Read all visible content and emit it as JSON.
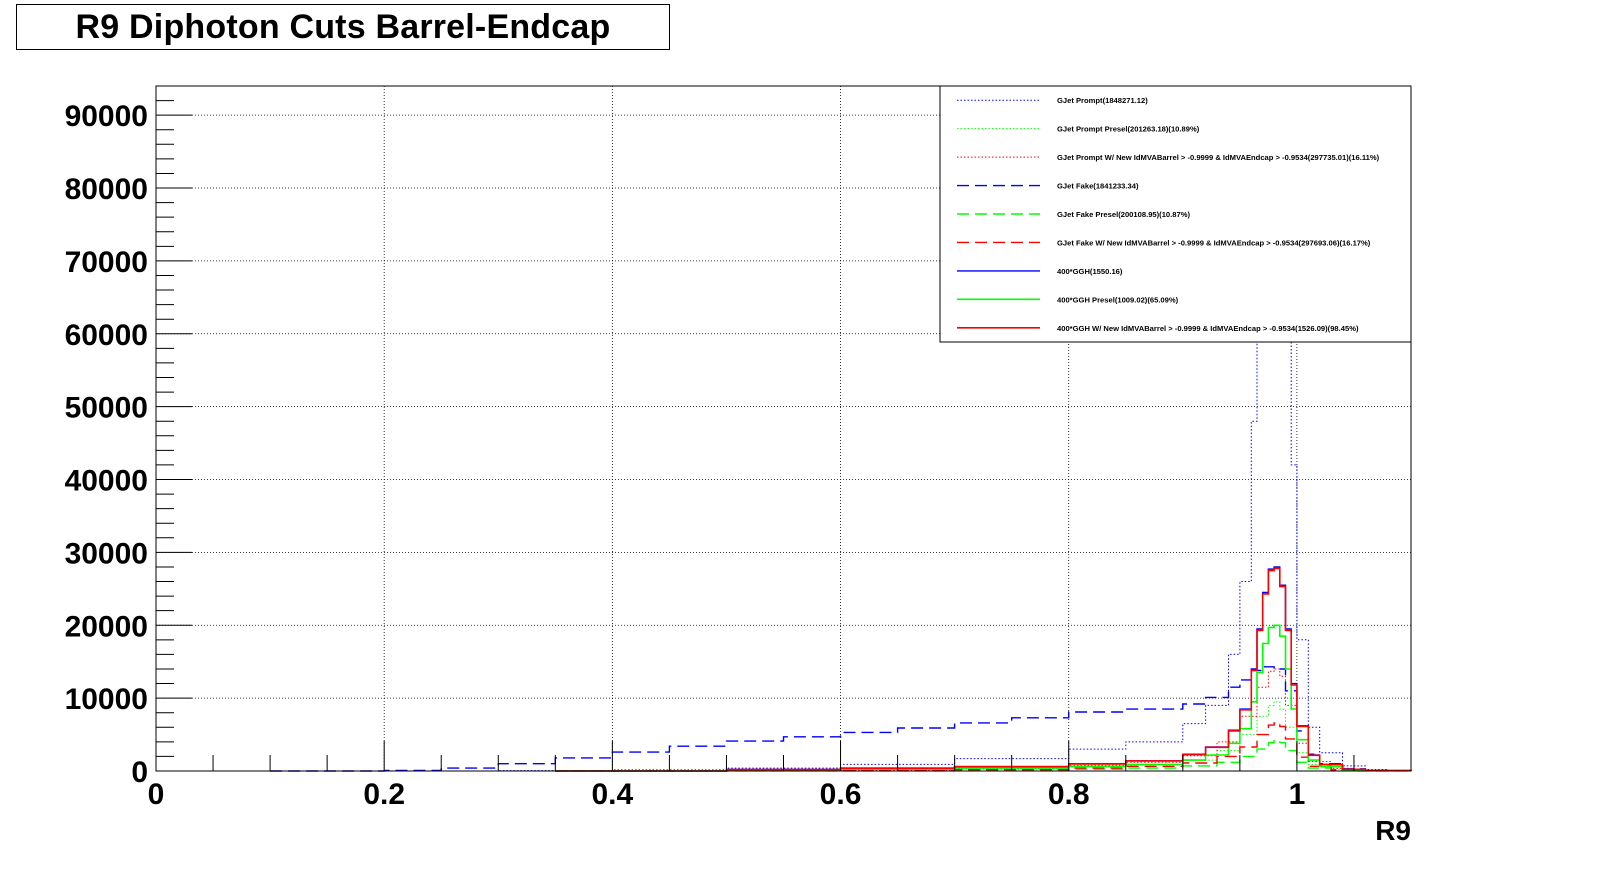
{
  "title": "R9 Diphoton Cuts Barrel-Endcap",
  "chart_data": {
    "type": "line",
    "title": "R9 Diphoton Cuts Barrel-Endcap",
    "xlabel": "R9",
    "ylabel": "",
    "xlim": [
      0,
      1.1
    ],
    "ylim": [
      0,
      94000
    ],
    "grid": true,
    "legend_position": "top-right",
    "x_ticks": [
      0,
      0.2,
      0.4,
      0.6,
      0.8,
      1
    ],
    "x_tick_labels": [
      "0",
      "0.2",
      "0.4",
      "0.6",
      "0.8",
      "1"
    ],
    "y_ticks": [
      0,
      10000,
      20000,
      30000,
      40000,
      50000,
      60000,
      70000,
      80000,
      90000
    ],
    "y_tick_labels": [
      "0",
      "10000",
      "20000",
      "30000",
      "40000",
      "50000",
      "60000",
      "70000",
      "80000",
      "90000"
    ],
    "series": [
      {
        "name": "GJet Prompt(1848271.12)",
        "color": "#0000ff",
        "style": "dotted",
        "width": 1,
        "x": [
          0.2,
          0.3,
          0.4,
          0.5,
          0.6,
          0.7,
          0.8,
          0.85,
          0.9,
          0.92,
          0.94,
          0.95,
          0.96,
          0.965,
          0.97,
          0.975,
          0.98,
          0.985,
          0.99,
          0.995,
          1.0,
          1.01,
          1.02,
          1.04,
          1.06,
          1.08,
          1.1
        ],
        "y": [
          0,
          50,
          150,
          400,
          900,
          1700,
          3000,
          4000,
          6500,
          9000,
          16000,
          26000,
          48000,
          70000,
          94000,
          94000,
          94000,
          94000,
          70000,
          42000,
          18000,
          6000,
          2500,
          700,
          200,
          50,
          0
        ]
      },
      {
        "name": "GJet Prompt Presel(201263.18)(10.89%)",
        "color": "#00ff00",
        "style": "dotted",
        "width": 1,
        "x": [
          0.3,
          0.5,
          0.7,
          0.8,
          0.85,
          0.9,
          0.93,
          0.95,
          0.965,
          0.975,
          0.98,
          0.985,
          0.99,
          1.0,
          1.01,
          1.03,
          1.05,
          1.1
        ],
        "y": [
          0,
          50,
          250,
          600,
          900,
          1500,
          2800,
          5000,
          7500,
          9000,
          9500,
          8500,
          6000,
          2500,
          900,
          250,
          50,
          0
        ]
      },
      {
        "name": "GJet Prompt W/ New IdMVABarrel > -0.9999 & IdMVAEndcap > -0.9534(297735.01)(16.11%)",
        "color": "#ff0000",
        "style": "dotted",
        "width": 1,
        "x": [
          0.3,
          0.5,
          0.7,
          0.8,
          0.85,
          0.9,
          0.93,
          0.95,
          0.965,
          0.975,
          0.98,
          0.985,
          0.99,
          1.0,
          1.01,
          1.03,
          1.05,
          1.1
        ],
        "y": [
          0,
          80,
          350,
          800,
          1200,
          2100,
          4000,
          7500,
          11500,
          13700,
          14000,
          13000,
          9000,
          3800,
          1300,
          350,
          80,
          0
        ]
      },
      {
        "name": "GJet Fake(1841233.34)",
        "color": "#0000ff",
        "style": "dashed",
        "width": 1.4,
        "x": [
          0.1,
          0.2,
          0.25,
          0.3,
          0.35,
          0.4,
          0.45,
          0.5,
          0.55,
          0.6,
          0.65,
          0.7,
          0.75,
          0.8,
          0.85,
          0.9,
          0.92,
          0.94,
          0.95,
          0.96,
          0.97,
          0.98,
          0.99,
          1.0,
          1.01,
          1.02,
          1.04,
          1.06,
          1.08,
          1.1
        ],
        "y": [
          0,
          80,
          400,
          1000,
          1800,
          2600,
          3400,
          4100,
          4700,
          5300,
          5900,
          6600,
          7300,
          8100,
          8500,
          9200,
          10100,
          11500,
          12500,
          13800,
          14300,
          14000,
          11000,
          5500,
          2300,
          1000,
          300,
          100,
          30,
          0
        ]
      },
      {
        "name": "GJet Fake Presel(200108.95)(10.87%)",
        "color": "#00ff00",
        "style": "dashed",
        "width": 1.4,
        "x": [
          0.35,
          0.5,
          0.7,
          0.8,
          0.85,
          0.9,
          0.93,
          0.95,
          0.965,
          0.975,
          0.98,
          0.985,
          0.99,
          1.0,
          1.01,
          1.03,
          1.05,
          1.1
        ],
        "y": [
          0,
          20,
          100,
          250,
          400,
          700,
          1200,
          2000,
          3000,
          3900,
          4200,
          3900,
          2800,
          1200,
          400,
          100,
          20,
          0
        ]
      },
      {
        "name": "GJet Fake W/ New IdMVABarrel > -0.9999 & IdMVAEndcap > -0.9534(297693.06)(16.17%)",
        "color": "#ff0000",
        "style": "dashed",
        "width": 1.4,
        "x": [
          0.35,
          0.5,
          0.7,
          0.8,
          0.85,
          0.9,
          0.93,
          0.95,
          0.965,
          0.975,
          0.98,
          0.985,
          0.99,
          1.0,
          1.01,
          1.03,
          1.05,
          1.1
        ],
        "y": [
          0,
          40,
          180,
          400,
          650,
          1100,
          2000,
          3300,
          5000,
          6300,
          6600,
          6100,
          4400,
          1900,
          650,
          160,
          40,
          0
        ]
      },
      {
        "name": "400*GGH(1550.16)",
        "color": "#0000ff",
        "style": "solid",
        "width": 1.4,
        "x": [
          0.35,
          0.5,
          0.6,
          0.7,
          0.8,
          0.85,
          0.9,
          0.92,
          0.94,
          0.95,
          0.96,
          0.965,
          0.97,
          0.975,
          0.98,
          0.985,
          0.99,
          0.995,
          1.0,
          1.01,
          1.02,
          1.04,
          1.06,
          1.1
        ],
        "y": [
          0,
          200,
          400,
          600,
          1000,
          1400,
          2300,
          3300,
          5600,
          8500,
          14000,
          19500,
          24500,
          27700,
          28000,
          25500,
          19500,
          12000,
          6200,
          2200,
          900,
          250,
          60,
          0
        ]
      },
      {
        "name": "400*GGH Presel(1009.02)(65.09%)",
        "color": "#00ff00",
        "style": "solid",
        "width": 1.6,
        "x": [
          0.35,
          0.5,
          0.6,
          0.7,
          0.8,
          0.85,
          0.9,
          0.92,
          0.94,
          0.95,
          0.96,
          0.965,
          0.97,
          0.975,
          0.98,
          0.985,
          0.99,
          0.995,
          1.0,
          1.01,
          1.02,
          1.04,
          1.06,
          1.1
        ],
        "y": [
          0,
          120,
          250,
          400,
          650,
          900,
          1500,
          2200,
          3800,
          5800,
          9500,
          13500,
          17500,
          19700,
          20000,
          18500,
          14000,
          8500,
          4300,
          1500,
          600,
          150,
          40,
          0
        ]
      },
      {
        "name": "400*GGH W/ New IdMVABarrel > -0.9999 & IdMVAEndcap > -0.9534(1526.09)(98.45%)",
        "color": "#ff0000",
        "style": "solid",
        "width": 1.6,
        "x": [
          0.35,
          0.5,
          0.6,
          0.7,
          0.8,
          0.85,
          0.9,
          0.92,
          0.94,
          0.95,
          0.96,
          0.965,
          0.97,
          0.975,
          0.98,
          0.985,
          0.99,
          0.995,
          1.0,
          1.01,
          1.02,
          1.04,
          1.06,
          1.1
        ],
        "y": [
          0,
          190,
          390,
          590,
          980,
          1380,
          2250,
          3250,
          5500,
          8400,
          13800,
          19300,
          24300,
          27500,
          27800,
          25300,
          19300,
          11800,
          6100,
          2150,
          880,
          240,
          55,
          0
        ]
      }
    ]
  }
}
